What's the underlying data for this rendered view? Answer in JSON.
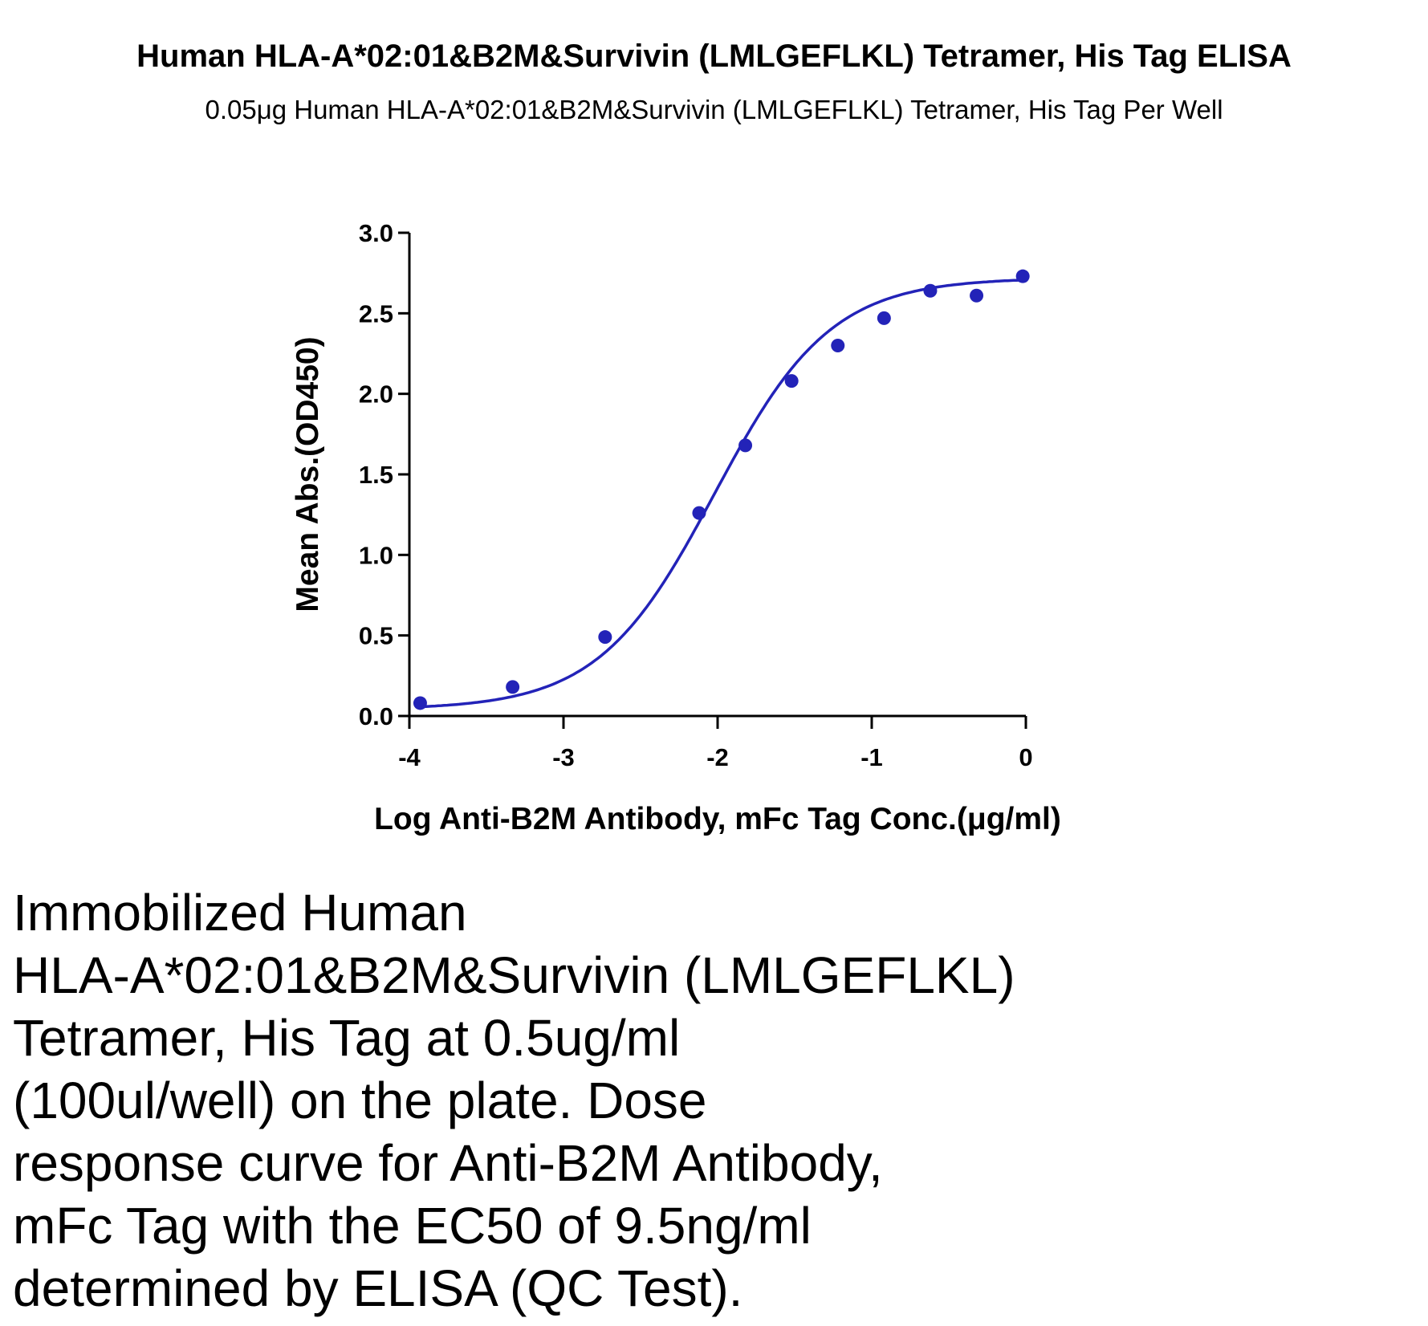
{
  "chart_data": {
    "type": "scatter",
    "title": "Human HLA-A*02:01&B2M&Survivin (LMLGEFLKL) Tetramer, His Tag ELISA",
    "subtitle": "0.05μg Human HLA-A*02:01&B2M&Survivin (LMLGEFLKL) Tetramer, His Tag Per Well",
    "xlabel": "Log Anti-B2M Antibody, mFc Tag Conc.(μg/ml)",
    "ylabel": "Mean Abs.(OD450)",
    "xlim": [
      -4,
      0
    ],
    "ylim": [
      0,
      3
    ],
    "xticks": [
      "-4",
      "-3",
      "-2",
      "-1",
      "0"
    ],
    "yticks": [
      "0.0",
      "0.5",
      "1.0",
      "1.5",
      "2.0",
      "2.5",
      "3.0"
    ],
    "grid": false,
    "series": [
      {
        "x": [
          -3.93,
          -3.33,
          -2.73,
          -2.12,
          -1.82,
          -1.52,
          -1.22,
          -0.92,
          -0.62,
          -0.32,
          -0.02
        ],
        "y": [
          0.08,
          0.18,
          0.49,
          1.26,
          1.68,
          2.08,
          2.3,
          2.47,
          2.64,
          2.61,
          2.73
        ],
        "color": "#2323b8",
        "fit": "four-parameter logistic"
      }
    ],
    "fit_params": {
      "bottom": 0.04,
      "top": 2.72,
      "logEC50": -2.02,
      "hill": 1.15
    }
  },
  "caption_lines": [
    "Immobilized Human",
    "HLA-A*02:01&B2M&Survivin (LMLGEFLKL)",
    "Tetramer, His Tag at 0.5ug/ml",
    "(100ul/well) on the plate. Dose",
    "response curve for Anti-B2M Antibody,",
    "mFc Tag with the EC50 of 9.5ng/ml",
    "determined by ELISA (QC Test)."
  ]
}
